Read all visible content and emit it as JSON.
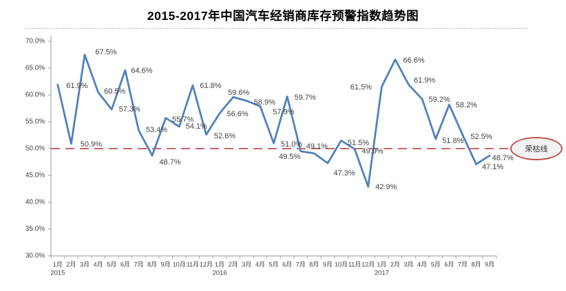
{
  "chart_data": {
    "type": "line",
    "title": "2015-2017年中国汽车经销商库存预警指数趋势图",
    "ylim": [
      30,
      70
    ],
    "ytick_step": 5,
    "ytick_labels": [
      "70.0%",
      "65.0%",
      "60.0%",
      "55.0%",
      "50.0%",
      "45.0%",
      "40.0%",
      "35.0%",
      "30.0%"
    ],
    "grid": false,
    "legend": "none",
    "x_groups": [
      {
        "year": "2015",
        "months": [
          "1月",
          "2月",
          "3月",
          "4月",
          "5月",
          "6月",
          "7月",
          "8月",
          "9月",
          "10月",
          "11月",
          "12月"
        ]
      },
      {
        "year": "2016",
        "months": [
          "1月",
          "2月",
          "3月",
          "4月",
          "5月",
          "6月",
          "7月",
          "8月",
          "9月",
          "10月",
          "11月",
          "12月"
        ]
      },
      {
        "year": "2017",
        "months": [
          "1月",
          "2月",
          "3月",
          "4月",
          "5月",
          "6月",
          "7月",
          "8月",
          "9月"
        ]
      }
    ],
    "values": [
      61.9,
      50.9,
      67.5,
      60.5,
      57.3,
      64.6,
      53.4,
      48.7,
      55.7,
      54.1,
      61.8,
      52.6,
      56.6,
      59.6,
      58.9,
      57.9,
      51.0,
      59.7,
      49.5,
      49.1,
      47.3,
      51.5,
      49.9,
      42.9,
      61.5,
      66.6,
      61.9,
      59.2,
      51.8,
      58.2,
      52.5,
      47.1,
      48.7
    ],
    "data_label_suffix": "%",
    "threshold": {
      "value": 50,
      "label": "荣枯线"
    }
  },
  "colors": {
    "series_line": "#4F81BD",
    "threshold_line": "#C0504D",
    "axis": "#A6A6A6",
    "data_label_text": "#3F3F3F",
    "tick_text": "#404040",
    "annotation_fill": "#F2F2F2",
    "annotation_border": "#C0504D"
  }
}
